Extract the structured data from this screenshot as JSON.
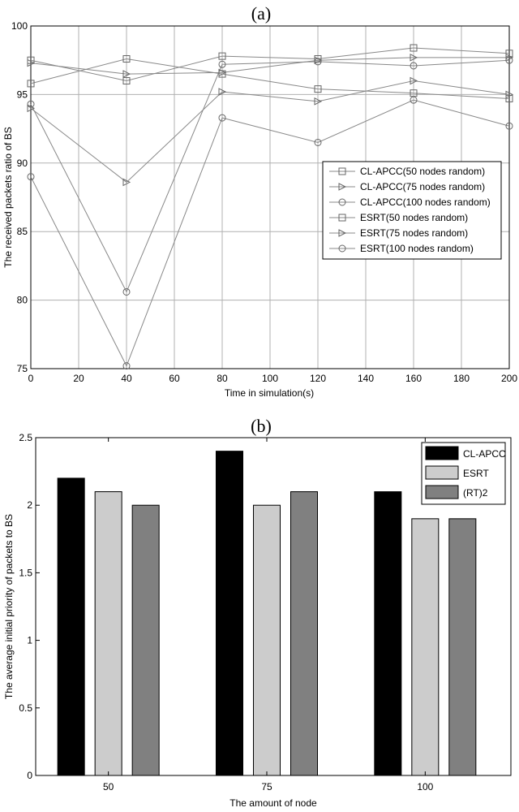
{
  "chart_data": [
    {
      "type": "line",
      "panel_label": "(a)",
      "title": "",
      "xlabel": "Time in simulation(s)",
      "ylabel": "The received packets ratio of BS",
      "xlim": [
        0,
        200
      ],
      "ylim": [
        75,
        100
      ],
      "xticks": [
        0,
        20,
        40,
        60,
        80,
        100,
        120,
        140,
        160,
        180,
        200
      ],
      "yticks": [
        75,
        80,
        85,
        90,
        95,
        100
      ],
      "grid": true,
      "legend_position": "right-middle",
      "x": [
        0,
        40,
        80,
        120,
        160,
        200
      ],
      "series": [
        {
          "name": "CL-APCC(50 nodes random)",
          "marker": "square",
          "values": [
            97.5,
            96.0,
            97.8,
            97.6,
            98.4,
            98.0
          ]
        },
        {
          "name": "CL-APCC(75 nodes random)",
          "marker": "triangle-right",
          "values": [
            97.3,
            96.5,
            96.6,
            97.5,
            97.7,
            97.7
          ]
        },
        {
          "name": "CL-APCC(100 nodes random)",
          "marker": "circle",
          "values": [
            94.3,
            80.6,
            97.2,
            97.4,
            97.1,
            97.5
          ]
        },
        {
          "name": "ESRT(50 nodes random)",
          "marker": "square",
          "values": [
            95.8,
            97.6,
            96.5,
            95.4,
            95.1,
            94.7
          ]
        },
        {
          "name": "ESRT(75 nodes random)",
          "marker": "triangle-right",
          "values": [
            94.0,
            88.6,
            95.2,
            94.5,
            96.0,
            95.0
          ]
        },
        {
          "name": "ESRT(100 nodes random)",
          "marker": "circle",
          "values": [
            89.0,
            75.2,
            93.3,
            91.5,
            94.6,
            92.7
          ]
        }
      ]
    },
    {
      "type": "bar",
      "panel_label": "(b)",
      "title": "",
      "xlabel": "The amount of node",
      "ylabel": "The average initial priority of packets to BS",
      "ylim": [
        0,
        2.5
      ],
      "yticks": [
        "0",
        "0.5",
        "1",
        "1.5",
        "2",
        "2.5"
      ],
      "grid": false,
      "legend_position": "top-right",
      "categories": [
        "50",
        "75",
        "100"
      ],
      "series": [
        {
          "name": "CL-APCC",
          "color": "#000000",
          "values": [
            2.2,
            2.4,
            2.1
          ]
        },
        {
          "name": "ESRT",
          "color": "#cccccc",
          "values": [
            2.1,
            2.0,
            1.9
          ]
        },
        {
          "name": "(RT)2",
          "color": "#808080",
          "values": [
            2.0,
            2.1,
            1.9
          ]
        }
      ]
    }
  ]
}
